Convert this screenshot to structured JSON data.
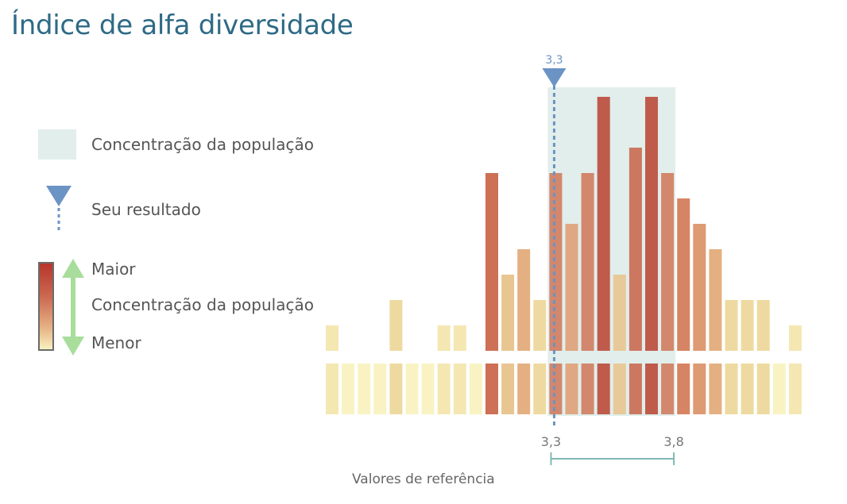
{
  "title": "Índice de alfa diversidade",
  "legend": {
    "band_label": "Concentração da população",
    "result_label": "Seu resultado",
    "scale_high": "Maior",
    "scale_mid": "Concentração da população",
    "scale_low": "Menor"
  },
  "colors": {
    "title": "#2e6a86",
    "band": "#e1eeec",
    "marker": "#6b94c4",
    "arrows": "#a8dd9c",
    "ref_bracket": "#7fb9b3"
  },
  "chart_data": {
    "type": "bar",
    "title": "Índice de alfa diversidade",
    "xlabel": "Valores de referência",
    "ylabel": "",
    "bin_count": 30,
    "values": [
      1,
      0,
      0,
      0,
      2,
      0,
      0,
      1,
      1,
      0,
      7,
      3,
      4,
      2,
      7,
      5,
      7,
      10,
      3,
      8,
      10,
      7,
      6,
      5,
      4,
      2,
      2,
      2,
      0,
      1
    ],
    "ylim": [
      0,
      10
    ],
    "your_result": {
      "value": 3.3,
      "label": "3,3",
      "bin_index": 14.5
    },
    "population_band": {
      "start_bin": 14,
      "end_bin": 21
    },
    "reference_range": {
      "low": 3.3,
      "high": 3.8,
      "low_label": "3,3",
      "high_label": "3,8"
    },
    "grid": false,
    "legend_position": "left"
  }
}
